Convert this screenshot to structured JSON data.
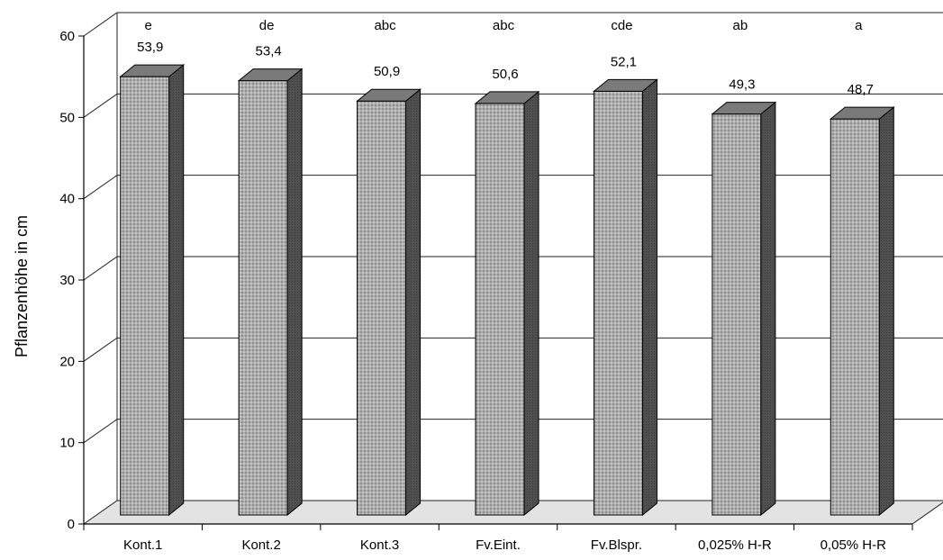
{
  "chart_data": {
    "type": "bar",
    "ylabel": "Pflanzenhöhe in cm",
    "xlabel": "",
    "ylim": [
      0,
      60
    ],
    "yticks": [
      "0",
      "10",
      "20",
      "30",
      "40",
      "50",
      "60"
    ],
    "grid": true,
    "categories": [
      "Kont.1",
      "Kont.2",
      "Kont.3",
      "Fv.Eint.",
      "Fv.Blspr.",
      "0,025% H-R",
      "0,05% H-R"
    ],
    "values": [
      53.9,
      53.4,
      50.9,
      50.6,
      52.1,
      49.3,
      48.7
    ],
    "value_labels": [
      "53,9",
      "53,4",
      "50,9",
      "50,6",
      "52,1",
      "49,3",
      "48,7"
    ],
    "significance_letters": [
      "e",
      "de",
      "abc",
      "abc",
      "cde",
      "ab",
      "a"
    ],
    "colors": {
      "bar_front": "#a9a9a9",
      "bar_top": "#7a7a7a",
      "bar_side": "#4f4f4f",
      "floor": "#e3e3e3"
    }
  }
}
